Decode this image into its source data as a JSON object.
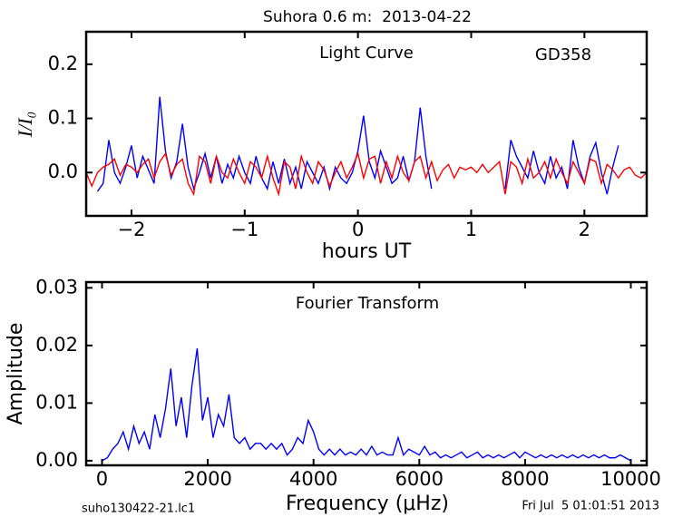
{
  "chart_data": [
    {
      "type": "line",
      "title": "Suhora 0.6 m:  2013-04-22",
      "annotations": [
        "Light Curve",
        "GD358"
      ],
      "xlabel": "hours UT",
      "ylabel": "I/I₀",
      "xlim": [
        -2.4,
        2.55
      ],
      "ylim": [
        -0.08,
        0.26
      ],
      "xticks": [
        {
          "value": -2,
          "label": "−2"
        },
        {
          "value": -1,
          "label": "−1"
        },
        {
          "value": 0,
          "label": "0"
        },
        1,
        2
      ],
      "yticks": [
        {
          "value": 0,
          "label": "0.0"
        },
        0.1,
        0.2
      ],
      "grid": false,
      "series": [
        {
          "color": "#0000ff",
          "x": [
            -2.3,
            -2.25,
            -2.2,
            -2.15,
            -2.1,
            -2.05,
            -2.0,
            -1.95,
            -1.9,
            -1.85,
            -1.8,
            -1.75,
            -1.7,
            -1.65,
            -1.6,
            -1.55,
            -1.5,
            -1.45,
            -1.4,
            -1.35,
            -1.3,
            -1.25,
            -1.2,
            -1.15,
            -1.1,
            -1.05,
            -1.0,
            -0.95,
            -0.9,
            -0.85,
            -0.8,
            -0.75,
            -0.7,
            -0.65,
            -0.6,
            -0.55,
            -0.5,
            -0.45,
            -0.4,
            -0.35,
            -0.3,
            -0.25,
            -0.2,
            -0.15,
            -0.1,
            -0.05,
            0.0,
            0.05,
            0.1,
            0.15,
            0.2,
            0.25,
            0.3,
            0.35,
            0.4,
            0.45,
            0.5,
            0.55,
            0.6,
            0.65,
            0.95,
            1.3,
            1.35,
            1.4,
            1.45,
            1.5,
            1.55,
            1.6,
            1.65,
            1.7,
            1.75,
            1.8,
            1.85,
            1.9,
            1.95,
            2.0,
            2.05,
            2.1,
            2.15,
            2.2,
            2.25,
            2.3
          ],
          "values": [
            -0.035,
            -0.02,
            0.06,
            0.0,
            -0.02,
            0.01,
            0.05,
            -0.01,
            0.03,
            0.005,
            -0.02,
            0.14,
            0.04,
            -0.01,
            0.02,
            0.09,
            0.01,
            -0.03,
            0.0,
            0.035,
            -0.01,
            0.03,
            -0.02,
            0.015,
            -0.01,
            0.03,
            0.0,
            -0.02,
            0.03,
            -0.01,
            -0.03,
            0.02,
            -0.02,
            0.025,
            -0.02,
            0.01,
            -0.03,
            0.02,
            0.0,
            -0.02,
            0.01,
            -0.03,
            0.01,
            -0.01,
            -0.02,
            0.0,
            0.04,
            0.105,
            0.02,
            -0.01,
            0.04,
            0.01,
            -0.02,
            -0.01,
            0.03,
            -0.015,
            0.02,
            0.12,
            0.03,
            -0.03,
            null,
            -0.03,
            0.06,
            0.03,
            0.01,
            -0.01,
            0.04,
            0.0,
            -0.02,
            0.03,
            -0.01,
            0.01,
            -0.03,
            0.06,
            0.01,
            -0.02,
            0.03,
            0.055,
            0.0,
            -0.04,
            0.01,
            0.05
          ]
        },
        {
          "color": "#ff0000",
          "x": [
            -2.4,
            -2.35,
            -2.3,
            -2.25,
            -2.2,
            -2.15,
            -2.1,
            -2.05,
            -2.0,
            -1.95,
            -1.9,
            -1.85,
            -1.8,
            -1.75,
            -1.7,
            -1.65,
            -1.6,
            -1.55,
            -1.5,
            -1.45,
            -1.4,
            -1.35,
            -1.3,
            -1.25,
            -1.2,
            -1.15,
            -1.1,
            -1.05,
            -1.0,
            -0.95,
            -0.9,
            -0.85,
            -0.8,
            -0.75,
            -0.7,
            -0.65,
            -0.6,
            -0.55,
            -0.5,
            -0.45,
            -0.4,
            -0.35,
            -0.3,
            -0.25,
            -0.2,
            -0.15,
            -0.1,
            -0.05,
            0.0,
            0.05,
            0.1,
            0.15,
            0.2,
            0.25,
            0.3,
            0.35,
            0.4,
            0.45,
            0.5,
            0.55,
            0.6,
            0.65,
            0.7,
            0.75,
            0.8,
            0.85,
            0.9,
            0.95,
            1.0,
            1.05,
            1.1,
            1.15,
            1.2,
            1.25,
            1.3,
            1.35,
            1.4,
            1.45,
            1.5,
            1.55,
            1.6,
            1.65,
            1.7,
            1.75,
            1.8,
            1.85,
            1.9,
            1.95,
            2.0,
            2.05,
            2.1,
            2.15,
            2.2,
            2.25,
            2.3,
            2.35,
            2.4,
            2.45,
            2.5,
            2.55
          ],
          "values": [
            0.0,
            -0.025,
            0.0,
            0.01,
            0.015,
            0.025,
            -0.005,
            0.015,
            0.01,
            0.0,
            0.015,
            0.025,
            -0.01,
            0.02,
            0.035,
            -0.005,
            0.015,
            0.025,
            -0.02,
            -0.04,
            0.03,
            0.02,
            -0.02,
            0.03,
            0.0,
            -0.01,
            0.025,
            0.0,
            -0.02,
            0.02,
            0.01,
            -0.01,
            0.03,
            -0.01,
            -0.04,
            0.02,
            0.01,
            -0.03,
            0.03,
            0.0,
            -0.02,
            0.02,
            0.005,
            -0.025,
            0.0,
            0.02,
            -0.01,
            0.01,
            0.035,
            -0.01,
            0.025,
            0.03,
            -0.02,
            0.02,
            -0.01,
            0.03,
            0.0,
            -0.015,
            0.02,
            0.03,
            -0.01,
            0.02,
            -0.015,
            0.005,
            0.015,
            -0.01,
            0.01,
            0.005,
            0.01,
            0.0,
            0.015,
            0.0,
            0.01,
            0.02,
            -0.04,
            0.02,
            0.01,
            -0.02,
            0.025,
            -0.01,
            0.0,
            0.02,
            -0.01,
            0.025,
            0.0,
            -0.02,
            0.02,
            0.0,
            -0.02,
            0.025,
            0.02,
            -0.02,
            0.015,
            0.005,
            -0.01,
            0.005,
            0.01,
            -0.005,
            -0.01,
            0.0
          ]
        }
      ]
    },
    {
      "type": "line",
      "annotations": [
        "Fourier Transform"
      ],
      "xlabel": "Frequency (μHz)",
      "ylabel": "Amplitude",
      "xlim": [
        -300,
        10300
      ],
      "ylim": [
        -0.0008,
        0.031
      ],
      "xticks": [
        0,
        2000,
        4000,
        6000,
        8000,
        10000
      ],
      "yticks": [
        {
          "value": 0,
          "label": "0.00"
        },
        0.01,
        0.02,
        0.03
      ],
      "grid": false,
      "series": [
        {
          "color": "#0000ff",
          "x": [
            0,
            100,
            200,
            300,
            400,
            500,
            600,
            700,
            800,
            900,
            1000,
            1100,
            1200,
            1300,
            1400,
            1500,
            1600,
            1700,
            1800,
            1900,
            2000,
            2100,
            2200,
            2300,
            2400,
            2500,
            2600,
            2700,
            2800,
            2900,
            3000,
            3100,
            3200,
            3300,
            3400,
            3500,
            3600,
            3700,
            3800,
            3900,
            4000,
            4100,
            4200,
            4300,
            4400,
            4500,
            4600,
            4700,
            4800,
            4900,
            5000,
            5100,
            5200,
            5300,
            5400,
            5500,
            5600,
            5700,
            5800,
            5900,
            6000,
            6100,
            6200,
            6300,
            6400,
            6500,
            6600,
            6700,
            6800,
            6900,
            7000,
            7100,
            7200,
            7300,
            7400,
            7500,
            7600,
            7700,
            7800,
            7900,
            8000,
            8100,
            8200,
            8300,
            8400,
            8500,
            8600,
            8700,
            8800,
            8900,
            9000,
            9100,
            9200,
            9300,
            9400,
            9500,
            9600,
            9700,
            9800,
            9900,
            10000
          ],
          "values": [
            0.0,
            0.0005,
            0.002,
            0.003,
            0.005,
            0.002,
            0.006,
            0.003,
            0.005,
            0.002,
            0.008,
            0.004,
            0.009,
            0.016,
            0.006,
            0.011,
            0.004,
            0.013,
            0.0195,
            0.007,
            0.011,
            0.004,
            0.008,
            0.006,
            0.0115,
            0.004,
            0.003,
            0.004,
            0.002,
            0.003,
            0.003,
            0.002,
            0.003,
            0.002,
            0.003,
            0.001,
            0.002,
            0.004,
            0.003,
            0.007,
            0.005,
            0.002,
            0.001,
            0.002,
            0.001,
            0.002,
            0.001,
            0.0015,
            0.001,
            0.002,
            0.001,
            0.0025,
            0.001,
            0.0015,
            0.001,
            0.001,
            0.004,
            0.001,
            0.002,
            0.0015,
            0.001,
            0.0025,
            0.001,
            0.0015,
            0.0005,
            0.001,
            0.0005,
            0.001,
            0.0015,
            0.0005,
            0.001,
            0.0015,
            0.0005,
            0.001,
            0.0005,
            0.001,
            0.0005,
            0.001,
            0.0015,
            0.0005,
            0.0015,
            0.001,
            0.0005,
            0.001,
            0.0005,
            0.001,
            0.0005,
            0.001,
            0.0005,
            0.001,
            0.0005,
            0.001,
            0.0005,
            0.001,
            0.0005,
            0.001,
            0.0005,
            0.0005,
            0.001,
            0.0005,
            0.0
          ]
        }
      ]
    }
  ],
  "footer": {
    "file": "suho130422-21.lc1",
    "timestamp": "Fri Jul  5 01:01:51 2013"
  }
}
